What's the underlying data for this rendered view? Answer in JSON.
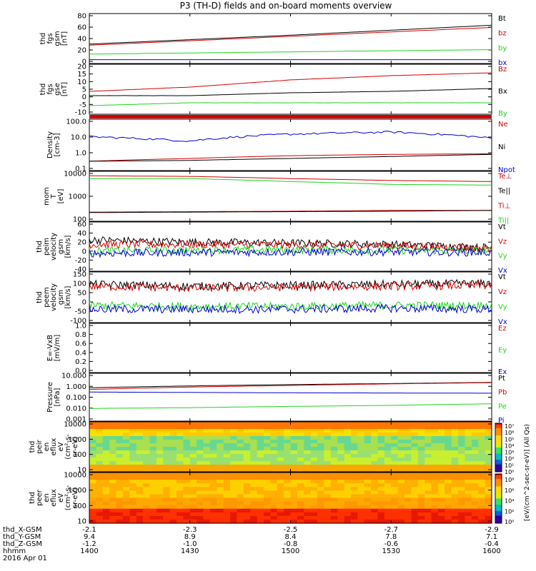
{
  "title": "P3 (TH-D) fields and on-board moments overview",
  "colors": {
    "black": "#000000",
    "red": "#d40000",
    "green": "#1fd41f",
    "blue": "#0000d0"
  },
  "panels": [
    {
      "id": "fgs_gsm",
      "ylabel": [
        "thd",
        "fgs",
        "gsm",
        "[nT]"
      ],
      "yticks": [
        "80",
        "60",
        "40",
        "20",
        "0"
      ],
      "legend": [
        "Bt",
        "bz",
        "by",
        "bx"
      ],
      "legend_colors": [
        "black",
        "red",
        "green",
        "blue"
      ]
    },
    {
      "id": "fgs_gse",
      "ylabel": [
        "thd",
        "fgs",
        "gse",
        "[nT]"
      ],
      "yticks": [
        "20",
        "15",
        "10",
        "5",
        "0",
        "-5",
        "-10"
      ],
      "legend": [
        "Bz",
        "Bx",
        "By"
      ],
      "legend_colors": [
        "red",
        "black",
        "green"
      ]
    },
    {
      "id": "flag",
      "ylabel": [],
      "yticks": [],
      "legend": [],
      "legend_colors": []
    },
    {
      "id": "density",
      "ylabel": [
        "Density",
        "[cm-3]"
      ],
      "yticks": [
        "100.0",
        "10.0",
        "1.0",
        "0.1"
      ],
      "legend": [
        "Ne",
        "Ni",
        "Npot"
      ],
      "legend_colors": [
        "red",
        "black",
        "blue"
      ]
    },
    {
      "id": "temp",
      "ylabel": [
        "mom",
        "T",
        "[eV]"
      ],
      "yticks": [
        "10000",
        "1000",
        "100"
      ],
      "legend": [
        "Te⊥",
        "Te||",
        "Ti⊥",
        "Ti||"
      ],
      "legend_colors": [
        "red",
        "black",
        "red",
        "green"
      ]
    },
    {
      "id": "peim_vel",
      "ylabel": [
        "thd",
        "peim",
        "velocity",
        "gsm",
        "[km/s]"
      ],
      "yticks": [
        "60",
        "40",
        "20",
        "0",
        "-20",
        "-40"
      ],
      "legend": [
        "Vt",
        "Vz",
        "Vy",
        "Vx"
      ],
      "legend_colors": [
        "black",
        "red",
        "green",
        "blue"
      ]
    },
    {
      "id": "peem_vel",
      "ylabel": [
        "thd",
        "peem",
        "velocity",
        "gsm",
        "[km/s]"
      ],
      "yticks": [
        "150",
        "100",
        "50",
        "0",
        "-50",
        "-100"
      ],
      "legend": [
        "Vt",
        "Vz",
        "Vy",
        "Vx"
      ],
      "legend_colors": [
        "black",
        "red",
        "green",
        "blue"
      ]
    },
    {
      "id": "efield",
      "ylabel": [
        "E=-VxB",
        "[mV/m]"
      ],
      "yticks": [
        "1.0",
        "0.8",
        "0.6",
        "0.4",
        "0.2",
        "0.0"
      ],
      "legend": [
        "Ez",
        "Ey",
        "Ex"
      ],
      "legend_colors": [
        "red",
        "green",
        "blue"
      ]
    },
    {
      "id": "pressure",
      "ylabel": [
        "Pressure",
        "[nPa]"
      ],
      "yticks": [
        "10.000",
        "1.000",
        "0.100",
        "0.010",
        "0.001"
      ],
      "legend": [
        "Pt",
        "Pb",
        "Pe",
        "Pi"
      ],
      "legend_colors": [
        "black",
        "red",
        "green",
        "blue"
      ]
    },
    {
      "id": "peir",
      "ylabel": [
        "thd",
        "peir",
        "en",
        "eflux",
        "eV",
        "(cm²-s-",
        "sr-eV)"
      ],
      "yticks": [
        "10000",
        "1000",
        "100",
        "10"
      ],
      "legend": [],
      "legend_colors": []
    },
    {
      "id": "peer",
      "ylabel": [
        "thd",
        "peer",
        "en",
        "eflux",
        "eV",
        "(cm²-s-",
        "sr-eV)"
      ],
      "yticks": [
        "10000",
        "1000",
        "100",
        "10"
      ],
      "legend": [],
      "legend_colors": []
    }
  ],
  "colorbar": {
    "label": "[eV/(cm^2-sec-sr-eV)] (All Qs)",
    "ticks_top": [
      "10⁷",
      "10⁶",
      "10⁵",
      "10⁴",
      "10³",
      "10²",
      "10¹",
      "10⁰"
    ],
    "ticks_bottom": [
      "10⁸",
      "10⁶",
      "10⁴",
      "10²",
      "10⁰"
    ]
  },
  "xaxis": {
    "row_labels": [
      "thd_X-GSM",
      "thd_Y-GSM",
      "thd_Z-GSM",
      "hhmm",
      "2016 Apr 01"
    ],
    "columns": [
      {
        "x": "-2.1",
        "y": "9.4",
        "z": "-1.2",
        "t": "1400"
      },
      {
        "x": "-2.3",
        "y": "8.9",
        "z": "-1.0",
        "t": "1430"
      },
      {
        "x": "-2.5",
        "y": "8.4",
        "z": "-0.8",
        "t": "1500"
      },
      {
        "x": "-2.7",
        "y": "7.8",
        "z": "-0.6",
        "t": "1530"
      },
      {
        "x": "-2.9",
        "y": "7.1",
        "z": "-0.4",
        "t": "1600"
      }
    ]
  },
  "chart_data": [
    {
      "type": "line",
      "title": "",
      "ylabel": "thd fgs gsm [nT]",
      "ylim": [
        -5,
        85
      ],
      "x": [
        1400,
        1430,
        1500,
        1530,
        1600
      ],
      "series": [
        {
          "name": "Bt",
          "values": [
            30,
            38,
            46,
            55,
            64
          ]
        },
        {
          "name": "bz",
          "values": [
            28,
            36,
            44,
            52,
            60
          ]
        },
        {
          "name": "by",
          "values": [
            12,
            14,
            16,
            18,
            20
          ]
        },
        {
          "name": "bx",
          "values": [
            2,
            2,
            2,
            2,
            2
          ]
        }
      ]
    },
    {
      "type": "line",
      "ylabel": "thd fgs gse [nT]",
      "ylim": [
        -13,
        22
      ],
      "x": [
        1400,
        1430,
        1500,
        1530,
        1600
      ],
      "series": [
        {
          "name": "Bz",
          "values": [
            3,
            6,
            11,
            14,
            16
          ]
        },
        {
          "name": "Bx",
          "values": [
            0,
            0,
            2,
            3,
            5
          ]
        },
        {
          "name": "By",
          "values": [
            -7,
            -5,
            -5,
            -5,
            -5
          ]
        }
      ]
    },
    {
      "type": "line",
      "ylabel": "Density [cm-3]",
      "log": true,
      "ylim": [
        0.1,
        200
      ],
      "x": [
        1400,
        1430,
        1500,
        1530,
        1600
      ],
      "series": [
        {
          "name": "Ne",
          "values": [
            0.4,
            0.6,
            0.9,
            1.1,
            1.2
          ]
        },
        {
          "name": "Ni",
          "values": [
            0.4,
            0.45,
            0.6,
            0.8,
            1.1
          ]
        },
        {
          "name": "Npot",
          "values": [
            15,
            8,
            22,
            30,
            12
          ]
        }
      ]
    },
    {
      "type": "line",
      "ylabel": "mom T [eV]",
      "log": true,
      "ylim": [
        30,
        12000
      ],
      "x": [
        1400,
        1430,
        1500,
        1530,
        1600
      ],
      "series": [
        {
          "name": "Te⊥",
          "values": [
            90,
            95,
            100,
            110,
            110
          ]
        },
        {
          "name": "Te||",
          "values": [
            85,
            90,
            95,
            100,
            110
          ]
        },
        {
          "name": "Ti⊥",
          "values": [
            7000,
            6500,
            5000,
            4000,
            3500
          ]
        },
        {
          "name": "Ti||",
          "values": [
            5000,
            5000,
            3500,
            2500,
            2300
          ]
        }
      ]
    },
    {
      "type": "line",
      "ylabel": "thd peim velocity gsm [km/s]",
      "ylim": [
        -45,
        65
      ],
      "x": [
        1400,
        1430,
        1500,
        1530,
        1600
      ],
      "series": [
        {
          "name": "Vt",
          "values": [
            25,
            20,
            18,
            15,
            8
          ]
        },
        {
          "name": "Vz",
          "values": [
            15,
            15,
            14,
            12,
            6
          ]
        },
        {
          "name": "Vy",
          "values": [
            0,
            2,
            3,
            2,
            0
          ]
        },
        {
          "name": "Vx",
          "values": [
            -5,
            -3,
            -2,
            -2,
            -3
          ]
        }
      ]
    },
    {
      "type": "line",
      "ylabel": "thd peem velocity gsm [km/s]",
      "ylim": [
        -110,
        155
      ],
      "x": [
        1400,
        1430,
        1500,
        1530,
        1600
      ],
      "series": [
        {
          "name": "Vt",
          "values": [
            90,
            80,
            85,
            90,
            95
          ]
        },
        {
          "name": "Vz",
          "values": [
            80,
            70,
            75,
            80,
            85
          ]
        },
        {
          "name": "Vy",
          "values": [
            -20,
            -25,
            -25,
            -20,
            -20
          ]
        },
        {
          "name": "Vx",
          "values": [
            -40,
            -40,
            -40,
            -35,
            -40
          ]
        }
      ]
    },
    {
      "type": "line",
      "ylabel": "E=-VxB [mV/m]",
      "ylim": [
        0,
        1
      ],
      "x": [
        1400,
        1430,
        1500,
        1530,
        1600
      ],
      "series": []
    },
    {
      "type": "line",
      "ylabel": "Pressure [nPa]",
      "log": true,
      "ylim": [
        0.001,
        12
      ],
      "x": [
        1400,
        1430,
        1500,
        1530,
        1600
      ],
      "series": [
        {
          "name": "Pt",
          "values": [
            0.7,
            1.0,
            1.3,
            1.6,
            2.0
          ]
        },
        {
          "name": "Pb",
          "values": [
            0.5,
            0.8,
            1.1,
            1.5,
            1.9
          ]
        },
        {
          "name": "Pe",
          "values": [
            0.012,
            0.014,
            0.018,
            0.022,
            0.03
          ]
        },
        {
          "name": "Pi",
          "values": [
            0.3,
            0.28,
            0.26,
            0.25,
            0.24
          ]
        }
      ]
    },
    {
      "type": "heatmap",
      "ylabel": "thd peir en eflux eV (cm²-s-sr-eV)",
      "log": true,
      "ylim": [
        5,
        30000
      ]
    },
    {
      "type": "heatmap",
      "ylabel": "thd peer en eflux eV (cm²-s-sr-eV)",
      "log": true,
      "ylim": [
        5,
        30000
      ]
    }
  ]
}
